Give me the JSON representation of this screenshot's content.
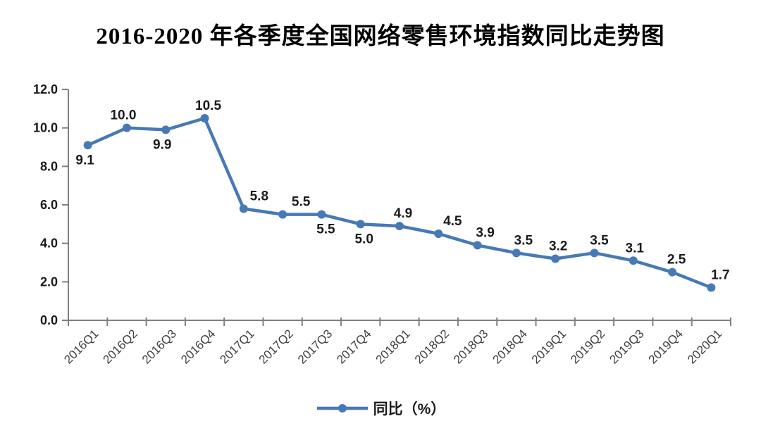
{
  "title": "2016-2020 年各季度全国网络零售环境指数同比走势图",
  "chart_data": {
    "type": "line",
    "title": "2016-2020 年各季度全国网络零售环境指数同比走势图",
    "categories": [
      "2016Q1",
      "2016Q2",
      "2016Q3",
      "2016Q4",
      "2017Q1",
      "2017Q2",
      "2017Q3",
      "2017Q4",
      "2018Q1",
      "2018Q2",
      "2018Q3",
      "2018Q4",
      "2019Q1",
      "2019Q2",
      "2019Q3",
      "2019Q4",
      "2020Q1"
    ],
    "series": [
      {
        "name": "同比（%）",
        "values": [
          9.1,
          10.0,
          9.9,
          10.5,
          5.8,
          5.5,
          5.5,
          5.0,
          4.9,
          4.5,
          3.9,
          3.5,
          3.2,
          3.5,
          3.1,
          2.5,
          1.7
        ]
      }
    ],
    "data_labels": {
      "show": true,
      "positions": [
        "below",
        "above",
        "below",
        "above",
        "above",
        "above",
        "below",
        "below",
        "above",
        "above",
        "above",
        "above",
        "above",
        "above",
        "above",
        "above",
        "above"
      ],
      "dx": [
        -4,
        -5,
        -5,
        5,
        22,
        26,
        6,
        5,
        5,
        20,
        11,
        10,
        4,
        7,
        2,
        6,
        13
      ]
    },
    "xlabel": "",
    "ylabel": "",
    "ylim": [
      0,
      12
    ],
    "yticks": [
      0,
      2,
      4,
      6,
      8,
      10,
      12
    ],
    "ytick_labels": [
      "0.0",
      "2.0",
      "4.0",
      "6.0",
      "8.0",
      "10.0",
      "12.0"
    ],
    "grid": false,
    "legend_position": "bottom",
    "x_label_rotation_deg": -45
  },
  "colors": {
    "series_line": "#4779b5",
    "axis": "#808080",
    "tick_label": "#1a1a1a",
    "x_label": "#404040",
    "data_label": "#1a1a1a",
    "title": "#000000"
  },
  "legend": {
    "label": "同比（%）",
    "marker": "line-with-dot-icon"
  }
}
